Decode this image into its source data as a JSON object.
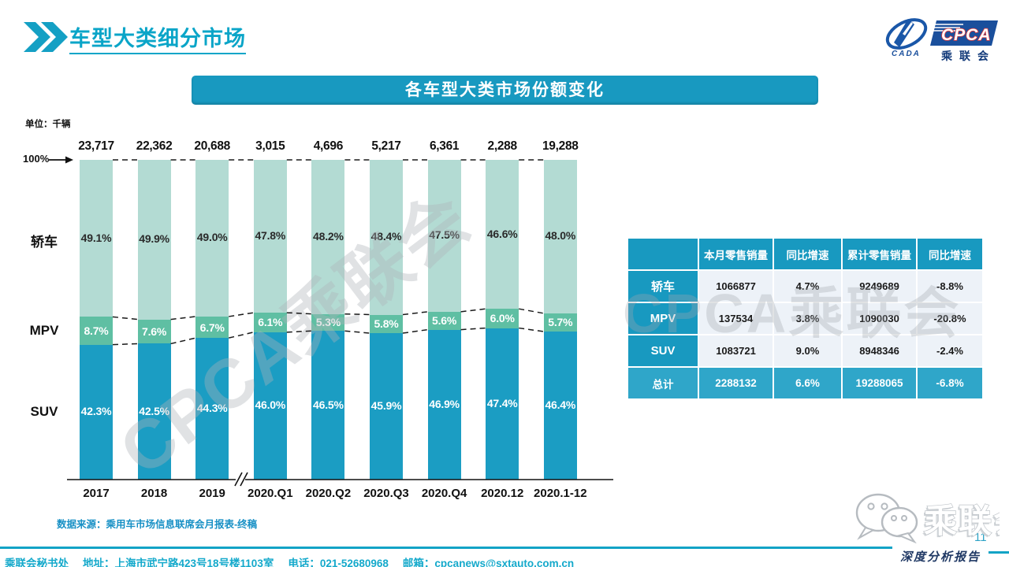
{
  "header": {
    "title": "车型大类细分市场",
    "logo": {
      "cpca_text": "CPCA",
      "sub_text": "CADA",
      "cn_text": "乘联会"
    }
  },
  "banner": {
    "text": "各车型大类市场份额变化"
  },
  "chart": {
    "unit_label": "单位：千辆",
    "pct_axis_label": "100%",
    "watermark": "CPCA乘联会",
    "source_note": "数据来源：乘用车市场信息联席会月报表-终稿"
  },
  "chart_data": {
    "type": "bar",
    "stacked_percent": true,
    "title": "各车型大类市场份额变化",
    "unit": "千辆",
    "categories": [
      "2017",
      "2018",
      "2019",
      "2020.Q1",
      "2020.Q2",
      "2020.Q3",
      "2020.Q4",
      "2020.12",
      "2020.1-12"
    ],
    "totals_thousands": [
      "23,717",
      "22,362",
      "20,688",
      "3,015",
      "4,696",
      "5,217",
      "6,361",
      "2,288",
      "19,288"
    ],
    "series": [
      {
        "name": "轿车",
        "color": "#b3dbd3",
        "values": [
          49.1,
          49.9,
          49.0,
          47.8,
          48.2,
          48.4,
          47.5,
          46.6,
          48.0
        ]
      },
      {
        "name": "MPV",
        "color": "#5fbfa3",
        "values": [
          8.7,
          7.6,
          6.7,
          6.1,
          5.3,
          5.8,
          5.6,
          6.0,
          5.7
        ]
      },
      {
        "name": "SUV",
        "color": "#1b9dc3",
        "values": [
          42.3,
          42.5,
          44.3,
          46.0,
          46.5,
          45.9,
          46.9,
          47.4,
          46.4
        ]
      }
    ],
    "ylim": [
      0,
      100
    ],
    "axis_break_between": [
      "2019",
      "2020.Q1"
    ]
  },
  "table": {
    "headers": [
      "",
      "本月零售销量",
      "同比增速",
      "累计零售销量",
      "同比增速"
    ],
    "rows": [
      {
        "label": "轿车",
        "cells": [
          "1066877",
          "4.7%",
          "9249689",
          "-8.8%"
        ],
        "is_total": false
      },
      {
        "label": "MPV",
        "cells": [
          "137534",
          "3.8%",
          "1090030",
          "-20.8%"
        ],
        "is_total": false
      },
      {
        "label": "SUV",
        "cells": [
          "1083721",
          "9.0%",
          "8948346",
          "-2.4%"
        ],
        "is_total": false
      },
      {
        "label": "总计",
        "cells": [
          "2288132",
          "6.6%",
          "19288065",
          "-6.8%"
        ],
        "is_total": true
      }
    ],
    "watermark": "CPCA乘联会"
  },
  "footer": {
    "secretariat": "乘联会秘书处",
    "address": "地址：上海市武宁路423号18号楼1103室",
    "phone": "电话：021-52680968",
    "email": "邮箱：cpcanews@sxtauto.com.cn",
    "report_label": "深度分析报告",
    "page_number": "11",
    "logo_text": "乘联会"
  },
  "colors": {
    "accent_teal": "#1899c0",
    "title_teal": "#0aa5c8",
    "mpv_green": "#5fbfa3",
    "sedan_light_green": "#b3dbd3",
    "suv_teal": "#1b9dc3",
    "navy": "#1f3864",
    "table_cell_bg": "#edf2f8"
  }
}
